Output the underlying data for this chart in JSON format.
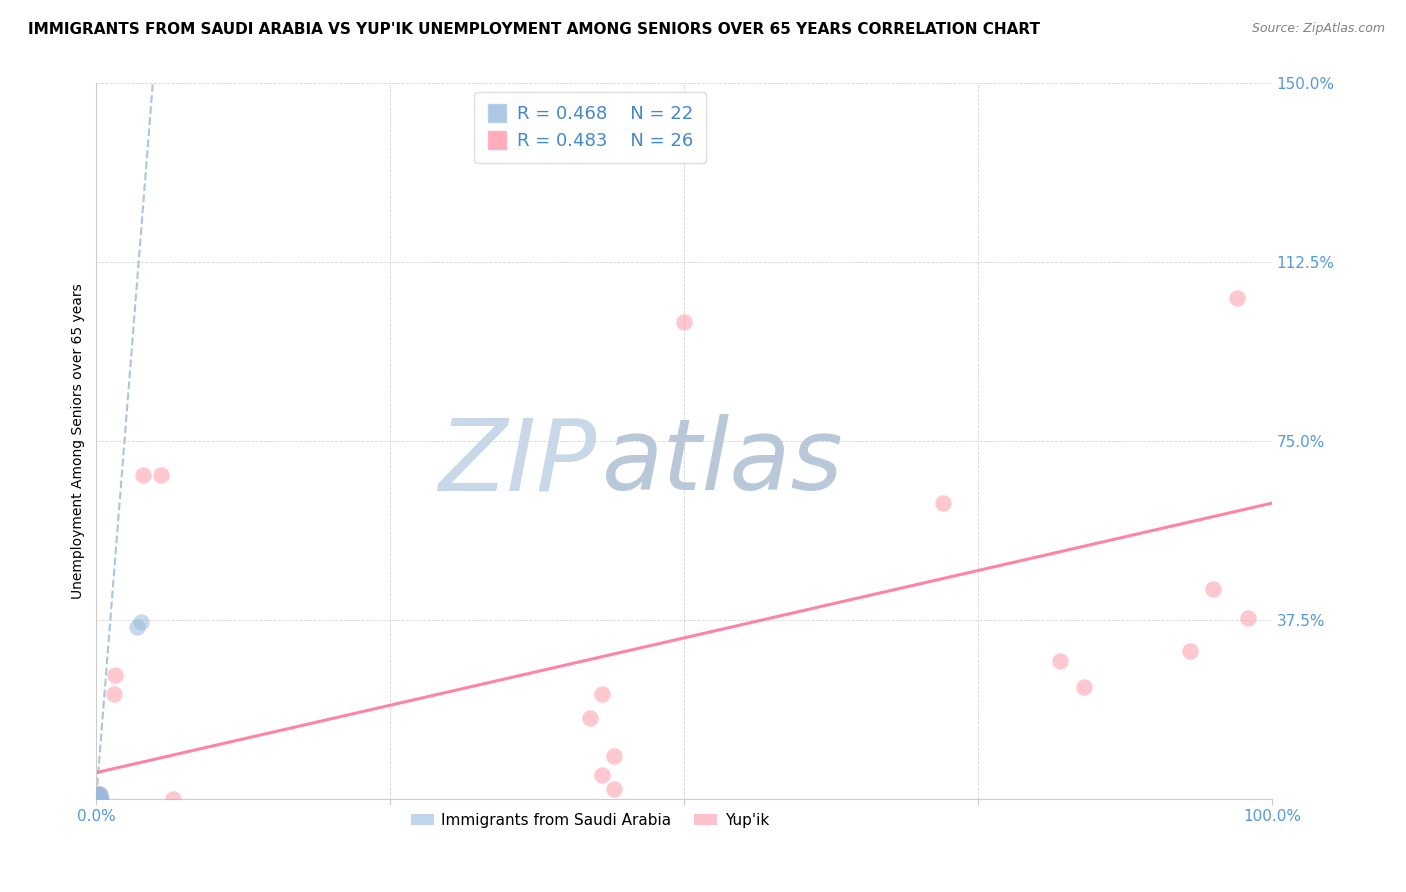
{
  "title": "IMMIGRANTS FROM SAUDI ARABIA VS YUP'IK UNEMPLOYMENT AMONG SENIORS OVER 65 YEARS CORRELATION CHART",
  "source": "Source: ZipAtlas.com",
  "ylabel": "Unemployment Among Seniors over 65 years",
  "xlim": [
    0.0,
    1.0
  ],
  "ylim": [
    0.0,
    1.5
  ],
  "xticks": [
    0.0,
    0.25,
    0.5,
    0.75,
    1.0
  ],
  "xticklabels": [
    "0.0%",
    "",
    "",
    "",
    "100.0%"
  ],
  "yticks": [
    0.0,
    0.375,
    0.75,
    1.125,
    1.5
  ],
  "yticklabels": [
    "",
    "37.5%",
    "75.0%",
    "112.5%",
    "150.0%"
  ],
  "legend_r1": "R = 0.468",
  "legend_n1": "N = 22",
  "legend_r2": "R = 0.483",
  "legend_n2": "N = 26",
  "blue_color": "#99BBDD",
  "pink_color": "#FF99AA",
  "trend_blue_color": "#99BBDD",
  "trend_pink_color": "#FF7799",
  "watermark_zip_color": "#C8D8E8",
  "watermark_atlas_color": "#B8C8D8",
  "blue_scatter_x": [
    0.001,
    0.002,
    0.003,
    0.002,
    0.001,
    0.002,
    0.003,
    0.001,
    0.002,
    0.003,
    0.001,
    0.002,
    0.003,
    0.004,
    0.002,
    0.003,
    0.001,
    0.002,
    0.003,
    0.002,
    0.035,
    0.038
  ],
  "blue_scatter_y": [
    0.0,
    0.0,
    0.0,
    0.0,
    0.0,
    0.005,
    0.005,
    0.01,
    0.01,
    0.0,
    0.0,
    0.0,
    0.0,
    0.0,
    0.0,
    0.0,
    0.0,
    0.0,
    0.0,
    0.0,
    0.36,
    0.37
  ],
  "pink_scatter_x": [
    0.001,
    0.002,
    0.003,
    0.002,
    0.003,
    0.001,
    0.002,
    0.003,
    0.015,
    0.016,
    0.04,
    0.055,
    0.065,
    0.42,
    0.43,
    0.44,
    0.43,
    0.44,
    0.5,
    0.72,
    0.82,
    0.84,
    0.93,
    0.95,
    0.97,
    0.98
  ],
  "pink_scatter_y": [
    0.0,
    0.0,
    0.0,
    0.005,
    0.01,
    0.01,
    0.0,
    0.0,
    0.22,
    0.26,
    0.68,
    0.68,
    0.0,
    0.17,
    0.22,
    0.09,
    0.05,
    0.02,
    1.0,
    0.62,
    0.29,
    0.235,
    0.31,
    0.44,
    1.05,
    0.38
  ],
  "blue_trend_x": [
    0.0,
    0.048
  ],
  "blue_trend_y": [
    0.005,
    1.5
  ],
  "pink_trend_x": [
    0.0,
    1.0
  ],
  "pink_trend_y": [
    0.055,
    0.62
  ],
  "marker_size": 140,
  "title_fontsize": 11,
  "axis_label_fontsize": 10,
  "tick_fontsize": 11,
  "source_fontsize": 9,
  "legend_fontsize": 13
}
